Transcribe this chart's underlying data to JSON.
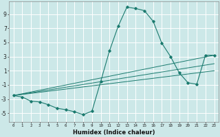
{
  "xlabel": "Humidex (Indice chaleur)",
  "ylabel": "",
  "bg_color": "#cce8e8",
  "grid_color": "#ffffff",
  "line_color": "#1a7a6e",
  "xlim": [
    -0.5,
    23.5
  ],
  "ylim": [
    -6.2,
    10.8
  ],
  "yticks": [
    -5,
    -3,
    -1,
    1,
    3,
    5,
    7,
    9
  ],
  "xticks": [
    0,
    1,
    2,
    3,
    4,
    5,
    6,
    7,
    8,
    9,
    10,
    11,
    12,
    13,
    14,
    15,
    16,
    17,
    18,
    19,
    20,
    21,
    22,
    23
  ],
  "line1_x": [
    0,
    1,
    2,
    3,
    4,
    5,
    6,
    7,
    8,
    9,
    10,
    11,
    12,
    13,
    14,
    15,
    16,
    17,
    18,
    19,
    20,
    21,
    22,
    23
  ],
  "line1_y": [
    -2.5,
    -2.7,
    -3.3,
    -3.4,
    -3.8,
    -4.3,
    -4.5,
    -4.8,
    -5.2,
    -4.7,
    -0.5,
    3.8,
    7.3,
    10.0,
    9.8,
    9.5,
    8.0,
    4.9,
    3.0,
    0.7,
    -0.7,
    -0.9,
    3.2,
    3.2
  ],
  "line2_x": [
    0,
    23
  ],
  "line2_y": [
    -2.5,
    3.2
  ],
  "line3_x": [
    0,
    23
  ],
  "line3_y": [
    -2.5,
    2.0
  ],
  "line4_x": [
    0,
    23
  ],
  "line4_y": [
    -2.5,
    1.0
  ]
}
